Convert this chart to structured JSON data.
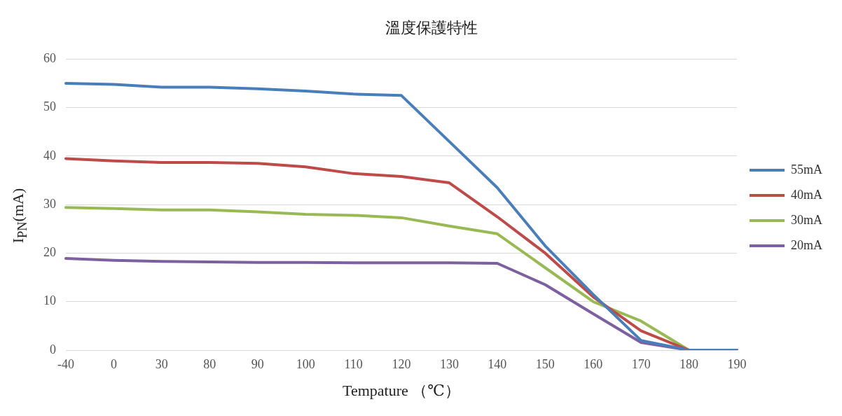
{
  "chart_data": {
    "type": "line",
    "title": "溫度保護特性",
    "xlabel": "Tempature （℃）",
    "ylabel": "I$_{PN}$(mA)",
    "categories": [
      "-40",
      "0",
      "30",
      "80",
      "90",
      "100",
      "110",
      "120",
      "130",
      "140",
      "150",
      "160",
      "170",
      "180",
      "190"
    ],
    "ylim": [
      0,
      60
    ],
    "yticks": [
      0,
      10,
      20,
      30,
      40,
      50,
      60
    ],
    "grid": "y",
    "legend": "right",
    "marker": "none",
    "line_style": "solid",
    "series": [
      {
        "name": "55mA",
        "color": "#4a7ebb",
        "values": [
          55,
          54.8,
          54.2,
          54.2,
          53.9,
          53.4,
          52.8,
          52.5,
          43,
          33.5,
          21.5,
          11.5,
          2,
          0,
          0
        ]
      },
      {
        "name": "40mA",
        "color": "#be4b48",
        "values": [
          39.5,
          39,
          38.7,
          38.7,
          38.5,
          37.8,
          36.4,
          35.8,
          34.5,
          27.5,
          20,
          11,
          4,
          0,
          0
        ]
      },
      {
        "name": "30mA",
        "color": "#98b954",
        "values": [
          29.4,
          29.2,
          28.9,
          28.9,
          28.5,
          28,
          27.8,
          27.3,
          25.6,
          24,
          17,
          10,
          6,
          0,
          0
        ]
      },
      {
        "name": "20mA",
        "color": "#7d60a0",
        "values": [
          18.9,
          18.5,
          18.3,
          18.2,
          18.1,
          18.1,
          18,
          18,
          18,
          17.9,
          13.5,
          7.5,
          1.6,
          0,
          0
        ]
      }
    ]
  }
}
